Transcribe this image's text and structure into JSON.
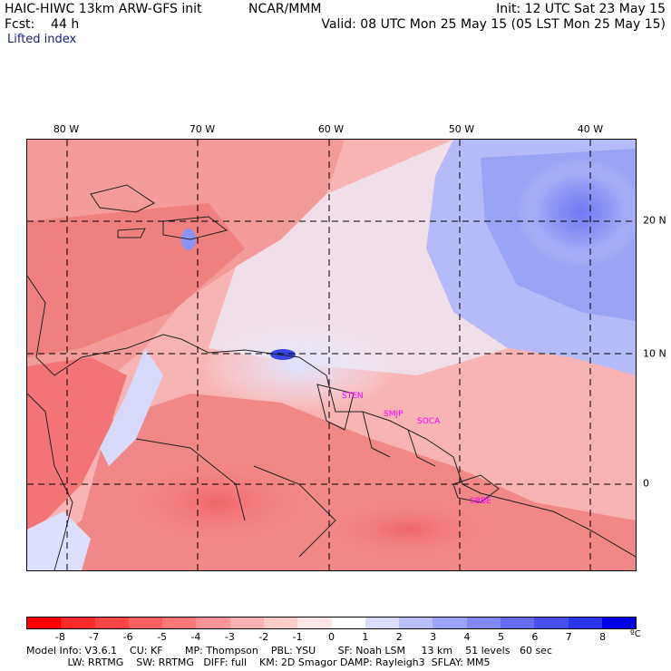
{
  "header": {
    "model": "HAIC-HIWC 13km ARW-GFS init",
    "org": "NCAR/MMM",
    "init": "Init: 12 UTC Sat 23 May 15",
    "fcst": "Fcst:    44 h",
    "valid": "Valid: 08 UTC Mon 25 May 15 (05 LST Mon 25 May 15)",
    "field": "Lifted index"
  },
  "longitude_labels": [
    "80 W",
    "70 W",
    "60 W",
    "50 W",
    "40 W"
  ],
  "latitude_labels": [
    "20 N",
    "10 N",
    "0"
  ],
  "stations": [
    "STEN",
    "SMJP",
    "SOCA",
    "SBBE"
  ],
  "colorbar": {
    "ticks": [
      "-8",
      "-7",
      "-6",
      "-5",
      "-4",
      "-3",
      "-2",
      "-1",
      "0",
      "1",
      "2",
      "3",
      "4",
      "5",
      "6",
      "7",
      "8"
    ],
    "unit": "ºC",
    "colors": [
      "#ff0000",
      "#ff2a2a",
      "#ff4545",
      "#ff5f5f",
      "#ff7979",
      "#ff9494",
      "#ffb0b0",
      "#ffcccc",
      "#ffe6e6",
      "#ffffff",
      "#d9dcff",
      "#b9befc",
      "#9ca3f8",
      "#8088f5",
      "#646cf2",
      "#4650ee",
      "#2a34ea",
      "#0000e6"
    ]
  },
  "model_info": {
    "line1": "Model Info: V3.6.1    CU: KF       MP: Thompson    PBL: YSU       SF: Noah LSM     13 km    51 levels   60 sec",
    "line2": "             LW: RRTMG    SW: RRTMG   DIFF: full    KM: 2D Smagor DAMP: Rayleigh3  SFLAY: MM5"
  }
}
